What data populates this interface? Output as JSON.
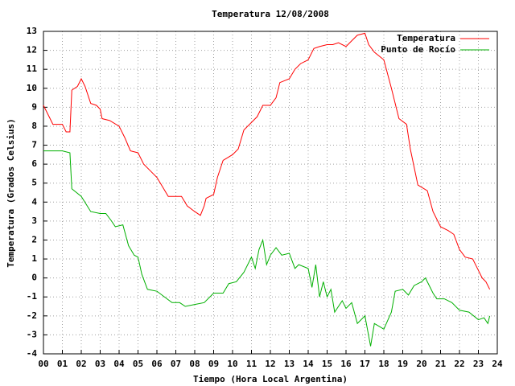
{
  "chart_data": {
    "type": "line",
    "title": "Temperatura 12/08/2008",
    "x_label": "Tiempo (Hora Local Argentina)",
    "y_label": "Temperatura (Grados Celsius)",
    "xlim": [
      0,
      24
    ],
    "ylim": [
      -4,
      13
    ],
    "xticks": [
      {
        "value": 0,
        "label": "00"
      },
      {
        "value": 1,
        "label": "01"
      },
      {
        "value": 2,
        "label": "02"
      },
      {
        "value": 3,
        "label": "03"
      },
      {
        "value": 4,
        "label": "04"
      },
      {
        "value": 5,
        "label": "05"
      },
      {
        "value": 6,
        "label": "06"
      },
      {
        "value": 7,
        "label": "07"
      },
      {
        "value": 8,
        "label": "08"
      },
      {
        "value": 9,
        "label": "09"
      },
      10,
      11,
      12,
      13,
      14,
      15,
      16,
      17,
      18,
      19,
      20,
      21,
      22,
      23,
      24
    ],
    "yticks": [
      -4,
      -3,
      -2,
      -1,
      0,
      1,
      2,
      3,
      4,
      5,
      6,
      7,
      8,
      9,
      10,
      11,
      12,
      13
    ],
    "grid": true,
    "legend": "top-right",
    "series": [
      {
        "name": "Temperatura",
        "color": "#ff0000",
        "x": [
          0,
          0.3,
          0.5,
          1.0,
          1.2,
          1.4,
          1.5,
          1.8,
          2.0,
          2.2,
          2.5,
          2.8,
          3.0,
          3.1,
          3.5,
          4.0,
          4.3,
          4.6,
          5.0,
          5.3,
          5.6,
          6.0,
          6.3,
          6.6,
          7.0,
          7.3,
          7.6,
          8.0,
          8.3,
          8.5,
          8.6,
          9.0,
          9.2,
          9.5,
          10.0,
          10.3,
          10.6,
          11.0,
          11.3,
          11.6,
          12.0,
          12.3,
          12.5,
          13.0,
          13.3,
          13.6,
          14.0,
          14.3,
          14.6,
          15.0,
          15.3,
          15.6,
          16.0,
          16.3,
          16.6,
          17.0,
          17.2,
          17.5,
          18.0,
          18.4,
          18.8,
          19.2,
          19.4,
          19.8,
          20.3,
          20.6,
          21.0,
          21.4,
          21.7,
          22.0,
          22.3,
          22.7,
          23.0,
          23.2,
          23.4,
          23.6
        ],
        "values": [
          9.1,
          8.5,
          8.1,
          8.1,
          7.7,
          7.7,
          9.9,
          10.1,
          10.5,
          10.1,
          9.2,
          9.1,
          8.9,
          8.4,
          8.3,
          8.0,
          7.4,
          6.7,
          6.6,
          6.0,
          5.7,
          5.3,
          4.8,
          4.3,
          4.3,
          4.3,
          3.8,
          3.5,
          3.3,
          3.8,
          4.2,
          4.4,
          5.3,
          6.2,
          6.5,
          6.8,
          7.8,
          8.2,
          8.5,
          9.1,
          9.1,
          9.5,
          10.3,
          10.5,
          11.0,
          11.3,
          11.5,
          12.1,
          12.2,
          12.3,
          12.3,
          12.4,
          12.2,
          12.5,
          12.8,
          12.9,
          12.3,
          11.9,
          11.5,
          10.0,
          8.4,
          8.1,
          6.8,
          4.9,
          4.6,
          3.5,
          2.7,
          2.5,
          2.3,
          1.5,
          1.1,
          1.0,
          0.4,
          0.0,
          -0.2,
          -0.6
        ]
      },
      {
        "name": "Punto de Rocío",
        "color": "#00b000",
        "x": [
          0,
          0.5,
          1.0,
          1.4,
          1.5,
          2.0,
          2.5,
          3.0,
          3.3,
          3.6,
          3.8,
          4.2,
          4.5,
          4.8,
          5.0,
          5.2,
          5.5,
          6.0,
          6.4,
          6.8,
          7.2,
          7.5,
          8.0,
          8.5,
          9.0,
          9.5,
          9.8,
          10.2,
          10.6,
          11.0,
          11.2,
          11.4,
          11.6,
          11.8,
          12.0,
          12.3,
          12.6,
          13.0,
          13.3,
          13.5,
          14.0,
          14.2,
          14.4,
          14.6,
          14.8,
          15.0,
          15.2,
          15.4,
          15.8,
          16.0,
          16.3,
          16.6,
          17.0,
          17.3,
          17.5,
          18.0,
          18.4,
          18.6,
          19.0,
          19.3,
          19.6,
          20.0,
          20.2,
          20.6,
          20.8,
          21.2,
          21.6,
          22.0,
          22.5,
          23.0,
          23.3,
          23.5,
          23.6
        ],
        "values": [
          6.7,
          6.7,
          6.7,
          6.6,
          4.7,
          4.3,
          3.5,
          3.4,
          3.4,
          3.0,
          2.7,
          2.8,
          1.7,
          1.2,
          1.1,
          0.2,
          -0.6,
          -0.7,
          -1.0,
          -1.3,
          -1.3,
          -1.5,
          -1.4,
          -1.3,
          -0.8,
          -0.8,
          -0.3,
          -0.2,
          0.3,
          1.1,
          0.5,
          1.5,
          2.0,
          0.7,
          1.2,
          1.6,
          1.2,
          1.3,
          0.5,
          0.7,
          0.5,
          -0.5,
          0.7,
          -1.0,
          -0.2,
          -1.0,
          -0.6,
          -1.8,
          -1.2,
          -1.6,
          -1.3,
          -2.4,
          -2.0,
          -3.6,
          -2.4,
          -2.7,
          -1.8,
          -0.7,
          -0.6,
          -0.9,
          -0.4,
          -0.2,
          0.0,
          -0.8,
          -1.1,
          -1.1,
          -1.3,
          -1.7,
          -1.8,
          -2.2,
          -2.1,
          -2.4,
          -2.0
        ]
      }
    ]
  }
}
